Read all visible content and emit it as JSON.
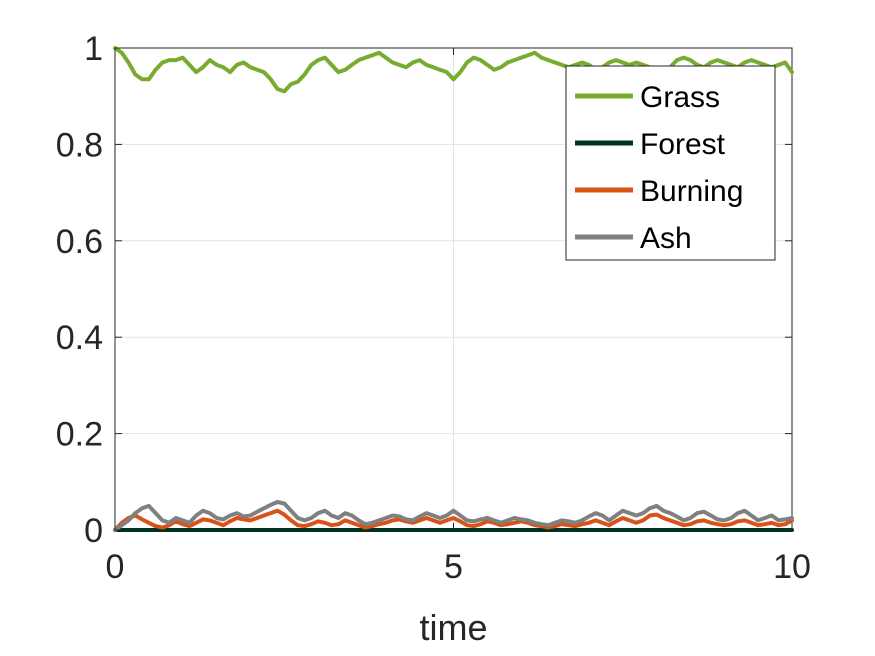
{
  "chart_data": {
    "type": "line",
    "title": "",
    "xlabel": "time",
    "ylabel": "",
    "xlim": [
      0,
      10
    ],
    "ylim": [
      0,
      1
    ],
    "xticks": [
      0,
      5,
      10
    ],
    "xtick_labels": [
      "0",
      "5",
      "10"
    ],
    "yticks": [
      0,
      0.2,
      0.4,
      0.6,
      0.8,
      1
    ],
    "ytick_labels": [
      "0",
      "0.2",
      "0.4",
      "0.6",
      "0.8",
      "1"
    ],
    "grid": true,
    "legend_position": "top-right",
    "series": [
      {
        "name": "Grass",
        "color": "#77ac30",
        "x": [
          0,
          0.1,
          0.2,
          0.3,
          0.4,
          0.5,
          0.6,
          0.7,
          0.8,
          0.9,
          1.0,
          1.1,
          1.2,
          1.3,
          1.4,
          1.5,
          1.6,
          1.7,
          1.8,
          1.9,
          2.0,
          2.1,
          2.2,
          2.3,
          2.4,
          2.5,
          2.6,
          2.7,
          2.8,
          2.9,
          3.0,
          3.1,
          3.2,
          3.3,
          3.4,
          3.5,
          3.6,
          3.7,
          3.8,
          3.9,
          4.0,
          4.1,
          4.2,
          4.3,
          4.4,
          4.5,
          4.6,
          4.7,
          4.8,
          4.9,
          5.0,
          5.1,
          5.2,
          5.3,
          5.4,
          5.5,
          5.6,
          5.7,
          5.8,
          5.9,
          6.0,
          6.1,
          6.2,
          6.3,
          6.4,
          6.5,
          6.6,
          6.7,
          6.8,
          6.9,
          7.0,
          7.1,
          7.2,
          7.3,
          7.4,
          7.5,
          7.6,
          7.7,
          7.8,
          7.9,
          8.0,
          8.1,
          8.2,
          8.3,
          8.4,
          8.5,
          8.6,
          8.7,
          8.8,
          8.9,
          9.0,
          9.1,
          9.2,
          9.3,
          9.4,
          9.5,
          9.6,
          9.7,
          9.8,
          9.9,
          10.0
        ],
        "y": [
          1.0,
          0.99,
          0.97,
          0.945,
          0.935,
          0.935,
          0.955,
          0.97,
          0.975,
          0.975,
          0.98,
          0.965,
          0.95,
          0.96,
          0.975,
          0.965,
          0.96,
          0.95,
          0.965,
          0.97,
          0.96,
          0.955,
          0.95,
          0.935,
          0.915,
          0.91,
          0.925,
          0.93,
          0.945,
          0.965,
          0.975,
          0.98,
          0.965,
          0.95,
          0.955,
          0.965,
          0.975,
          0.98,
          0.985,
          0.99,
          0.98,
          0.97,
          0.965,
          0.96,
          0.97,
          0.975,
          0.965,
          0.96,
          0.955,
          0.95,
          0.935,
          0.95,
          0.97,
          0.98,
          0.975,
          0.965,
          0.955,
          0.96,
          0.97,
          0.975,
          0.98,
          0.985,
          0.99,
          0.98,
          0.975,
          0.97,
          0.965,
          0.96,
          0.965,
          0.97,
          0.965,
          0.955,
          0.96,
          0.97,
          0.975,
          0.97,
          0.965,
          0.97,
          0.965,
          0.96,
          0.955,
          0.95,
          0.96,
          0.975,
          0.98,
          0.975,
          0.965,
          0.96,
          0.97,
          0.975,
          0.97,
          0.965,
          0.96,
          0.97,
          0.975,
          0.97,
          0.965,
          0.96,
          0.965,
          0.97,
          0.95
        ]
      },
      {
        "name": "Forest",
        "color": "#003322",
        "x": [
          0,
          10
        ],
        "y": [
          0.0,
          0.0
        ]
      },
      {
        "name": "Burning",
        "color": "#d95319",
        "x": [
          0,
          0.1,
          0.2,
          0.3,
          0.4,
          0.5,
          0.6,
          0.7,
          0.8,
          0.9,
          1.0,
          1.1,
          1.2,
          1.3,
          1.4,
          1.5,
          1.6,
          1.7,
          1.8,
          1.9,
          2.0,
          2.1,
          2.2,
          2.3,
          2.4,
          2.5,
          2.6,
          2.7,
          2.8,
          2.9,
          3.0,
          3.1,
          3.2,
          3.3,
          3.4,
          3.5,
          3.6,
          3.7,
          3.8,
          3.9,
          4.0,
          4.1,
          4.2,
          4.3,
          4.4,
          4.5,
          4.6,
          4.7,
          4.8,
          4.9,
          5.0,
          5.1,
          5.2,
          5.3,
          5.4,
          5.5,
          5.6,
          5.7,
          5.8,
          5.9,
          6.0,
          6.1,
          6.2,
          6.3,
          6.4,
          6.5,
          6.6,
          6.7,
          6.8,
          6.9,
          7.0,
          7.1,
          7.2,
          7.3,
          7.4,
          7.5,
          7.6,
          7.7,
          7.8,
          7.9,
          8.0,
          8.1,
          8.2,
          8.3,
          8.4,
          8.5,
          8.6,
          8.7,
          8.8,
          8.9,
          9.0,
          9.1,
          9.2,
          9.3,
          9.4,
          9.5,
          9.6,
          9.7,
          9.8,
          9.9,
          10.0
        ],
        "y": [
          0.0,
          0.015,
          0.025,
          0.03,
          0.022,
          0.015,
          0.008,
          0.005,
          0.01,
          0.018,
          0.012,
          0.008,
          0.015,
          0.022,
          0.02,
          0.015,
          0.01,
          0.018,
          0.025,
          0.022,
          0.02,
          0.025,
          0.03,
          0.035,
          0.04,
          0.032,
          0.02,
          0.01,
          0.008,
          0.012,
          0.018,
          0.015,
          0.01,
          0.012,
          0.02,
          0.015,
          0.01,
          0.005,
          0.008,
          0.012,
          0.015,
          0.02,
          0.022,
          0.018,
          0.015,
          0.02,
          0.025,
          0.02,
          0.015,
          0.02,
          0.025,
          0.018,
          0.01,
          0.008,
          0.012,
          0.018,
          0.015,
          0.01,
          0.012,
          0.015,
          0.018,
          0.015,
          0.01,
          0.008,
          0.005,
          0.008,
          0.012,
          0.01,
          0.008,
          0.012,
          0.015,
          0.02,
          0.015,
          0.01,
          0.018,
          0.025,
          0.02,
          0.015,
          0.02,
          0.03,
          0.032,
          0.025,
          0.02,
          0.015,
          0.01,
          0.012,
          0.018,
          0.02,
          0.015,
          0.012,
          0.01,
          0.012,
          0.018,
          0.02,
          0.015,
          0.01,
          0.012,
          0.015,
          0.01,
          0.012,
          0.02
        ]
      },
      {
        "name": "Ash",
        "color": "#808080",
        "x": [
          0,
          0.1,
          0.2,
          0.3,
          0.4,
          0.5,
          0.6,
          0.7,
          0.8,
          0.9,
          1.0,
          1.1,
          1.2,
          1.3,
          1.4,
          1.5,
          1.6,
          1.7,
          1.8,
          1.9,
          2.0,
          2.1,
          2.2,
          2.3,
          2.4,
          2.5,
          2.6,
          2.7,
          2.8,
          2.9,
          3.0,
          3.1,
          3.2,
          3.3,
          3.4,
          3.5,
          3.6,
          3.7,
          3.8,
          3.9,
          4.0,
          4.1,
          4.2,
          4.3,
          4.4,
          4.5,
          4.6,
          4.7,
          4.8,
          4.9,
          5.0,
          5.1,
          5.2,
          5.3,
          5.4,
          5.5,
          5.6,
          5.7,
          5.8,
          5.9,
          6.0,
          6.1,
          6.2,
          6.3,
          6.4,
          6.5,
          6.6,
          6.7,
          6.8,
          6.9,
          7.0,
          7.1,
          7.2,
          7.3,
          7.4,
          7.5,
          7.6,
          7.7,
          7.8,
          7.9,
          8.0,
          8.1,
          8.2,
          8.3,
          8.4,
          8.5,
          8.6,
          8.7,
          8.8,
          8.9,
          9.0,
          9.1,
          9.2,
          9.3,
          9.4,
          9.5,
          9.6,
          9.7,
          9.8,
          9.9,
          10.0
        ],
        "y": [
          0.0,
          0.01,
          0.02,
          0.035,
          0.045,
          0.05,
          0.035,
          0.02,
          0.015,
          0.025,
          0.02,
          0.015,
          0.03,
          0.04,
          0.035,
          0.025,
          0.022,
          0.03,
          0.035,
          0.028,
          0.03,
          0.038,
          0.045,
          0.052,
          0.058,
          0.055,
          0.04,
          0.025,
          0.02,
          0.025,
          0.035,
          0.04,
          0.03,
          0.025,
          0.035,
          0.03,
          0.02,
          0.012,
          0.015,
          0.02,
          0.025,
          0.03,
          0.028,
          0.022,
          0.02,
          0.028,
          0.035,
          0.03,
          0.025,
          0.03,
          0.04,
          0.03,
          0.02,
          0.018,
          0.022,
          0.025,
          0.02,
          0.015,
          0.02,
          0.025,
          0.022,
          0.02,
          0.015,
          0.012,
          0.01,
          0.015,
          0.02,
          0.018,
          0.015,
          0.02,
          0.028,
          0.035,
          0.03,
          0.02,
          0.03,
          0.04,
          0.035,
          0.03,
          0.035,
          0.045,
          0.05,
          0.04,
          0.035,
          0.028,
          0.02,
          0.025,
          0.035,
          0.038,
          0.03,
          0.022,
          0.02,
          0.025,
          0.035,
          0.04,
          0.03,
          0.02,
          0.025,
          0.03,
          0.02,
          0.022,
          0.025
        ]
      }
    ]
  }
}
